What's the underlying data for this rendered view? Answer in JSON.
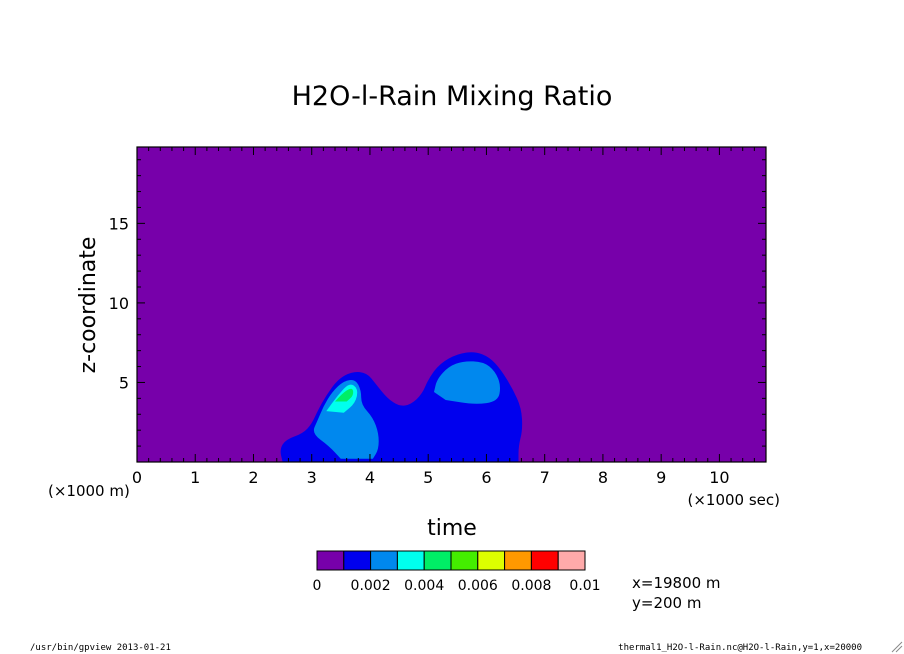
{
  "chart_data": {
    "type": "heatmap",
    "title": "H2O-l-Rain Mixing Ratio",
    "xlabel": "time",
    "ylabel": "z-coordinate",
    "x_unit_label": "(×1000 sec)",
    "y_unit_label": "(×1000 m)",
    "xlim": [
      0,
      10.8
    ],
    "ylim": [
      0,
      19.8
    ],
    "x_ticks": [
      "0",
      "1",
      "2",
      "3",
      "4",
      "5",
      "6",
      "7",
      "8",
      "9",
      "10"
    ],
    "y_ticks": [
      "5",
      "10",
      "15"
    ],
    "y_tick_values": [
      5,
      10,
      15
    ],
    "background_level_color": "#7700aa",
    "levels": [
      0,
      0.001,
      0.002,
      0.003,
      0.004,
      0.005,
      0.006,
      0.007,
      0.008,
      0.009,
      0.01
    ],
    "level_colors": [
      "#7700aa",
      "#0000ee",
      "#0088ee",
      "#00ffee",
      "#00ee66",
      "#44ee00",
      "#ddff00",
      "#ff9900",
      "#ff0000",
      "#ffaaaa"
    ],
    "colorbar_labels": [
      "0",
      "0.002",
      "0.004",
      "0.006",
      "0.008",
      "0.01"
    ],
    "contours": [
      {
        "level": 0.001,
        "color": "#0000ee",
        "points": [
          [
            2.5,
            0
          ],
          [
            2.45,
            0.8
          ],
          [
            2.55,
            1.4
          ],
          [
            2.85,
            1.8
          ],
          [
            3.0,
            2.4
          ],
          [
            3.1,
            3.2
          ],
          [
            3.25,
            4.2
          ],
          [
            3.45,
            5.2
          ],
          [
            3.7,
            5.7
          ],
          [
            3.95,
            5.6
          ],
          [
            4.1,
            4.9
          ],
          [
            4.3,
            4.0
          ],
          [
            4.5,
            3.5
          ],
          [
            4.7,
            3.6
          ],
          [
            4.9,
            4.3
          ],
          [
            5.0,
            5.2
          ],
          [
            5.2,
            6.2
          ],
          [
            5.5,
            6.8
          ],
          [
            5.8,
            6.95
          ],
          [
            6.05,
            6.6
          ],
          [
            6.25,
            5.8
          ],
          [
            6.45,
            4.6
          ],
          [
            6.6,
            3.4
          ],
          [
            6.62,
            2.0
          ],
          [
            6.55,
            1.0
          ],
          [
            6.55,
            0
          ]
        ]
      },
      {
        "level": 0.002,
        "color": "#0088ee",
        "points": [
          [
            3.5,
            0.2
          ],
          [
            3.3,
            1.0
          ],
          [
            3.0,
            1.8
          ],
          [
            3.1,
            2.6
          ],
          [
            3.2,
            3.5
          ],
          [
            3.35,
            4.4
          ],
          [
            3.55,
            5.1
          ],
          [
            3.75,
            5.2
          ],
          [
            3.85,
            4.5
          ],
          [
            3.85,
            3.6
          ],
          [
            4.05,
            2.8
          ],
          [
            4.15,
            1.8
          ],
          [
            4.15,
            0.8
          ],
          [
            4.05,
            0.2
          ]
        ]
      },
      {
        "level": 0.002,
        "color": "#0088ee",
        "points": [
          [
            5.1,
            4.4
          ],
          [
            5.15,
            5.2
          ],
          [
            5.35,
            6.0
          ],
          [
            5.6,
            6.35
          ],
          [
            5.95,
            6.3
          ],
          [
            6.15,
            5.7
          ],
          [
            6.25,
            4.8
          ],
          [
            6.2,
            3.8
          ],
          [
            5.8,
            3.6
          ],
          [
            5.3,
            3.9
          ]
        ]
      },
      {
        "level": 0.004,
        "color": "#00ffee",
        "points": [
          [
            3.25,
            3.2
          ],
          [
            3.45,
            4.2
          ],
          [
            3.65,
            5.0
          ],
          [
            3.8,
            4.6
          ],
          [
            3.75,
            3.7
          ],
          [
            3.55,
            3.1
          ]
        ]
      },
      {
        "level": 0.005,
        "color": "#00ee66",
        "points": [
          [
            3.4,
            3.8
          ],
          [
            3.55,
            4.4
          ],
          [
            3.7,
            4.7
          ],
          [
            3.72,
            4.2
          ],
          [
            3.6,
            3.8
          ]
        ]
      }
    ],
    "annotations": {
      "coord_x": "x=19800 m",
      "coord_y": "y=200 m"
    }
  },
  "footer": {
    "left": "/usr/bin/gpview  2013-01-21",
    "right": "thermal1_H2O-l-Rain.nc@H2O-l-Rain,y=1,x=20000"
  }
}
